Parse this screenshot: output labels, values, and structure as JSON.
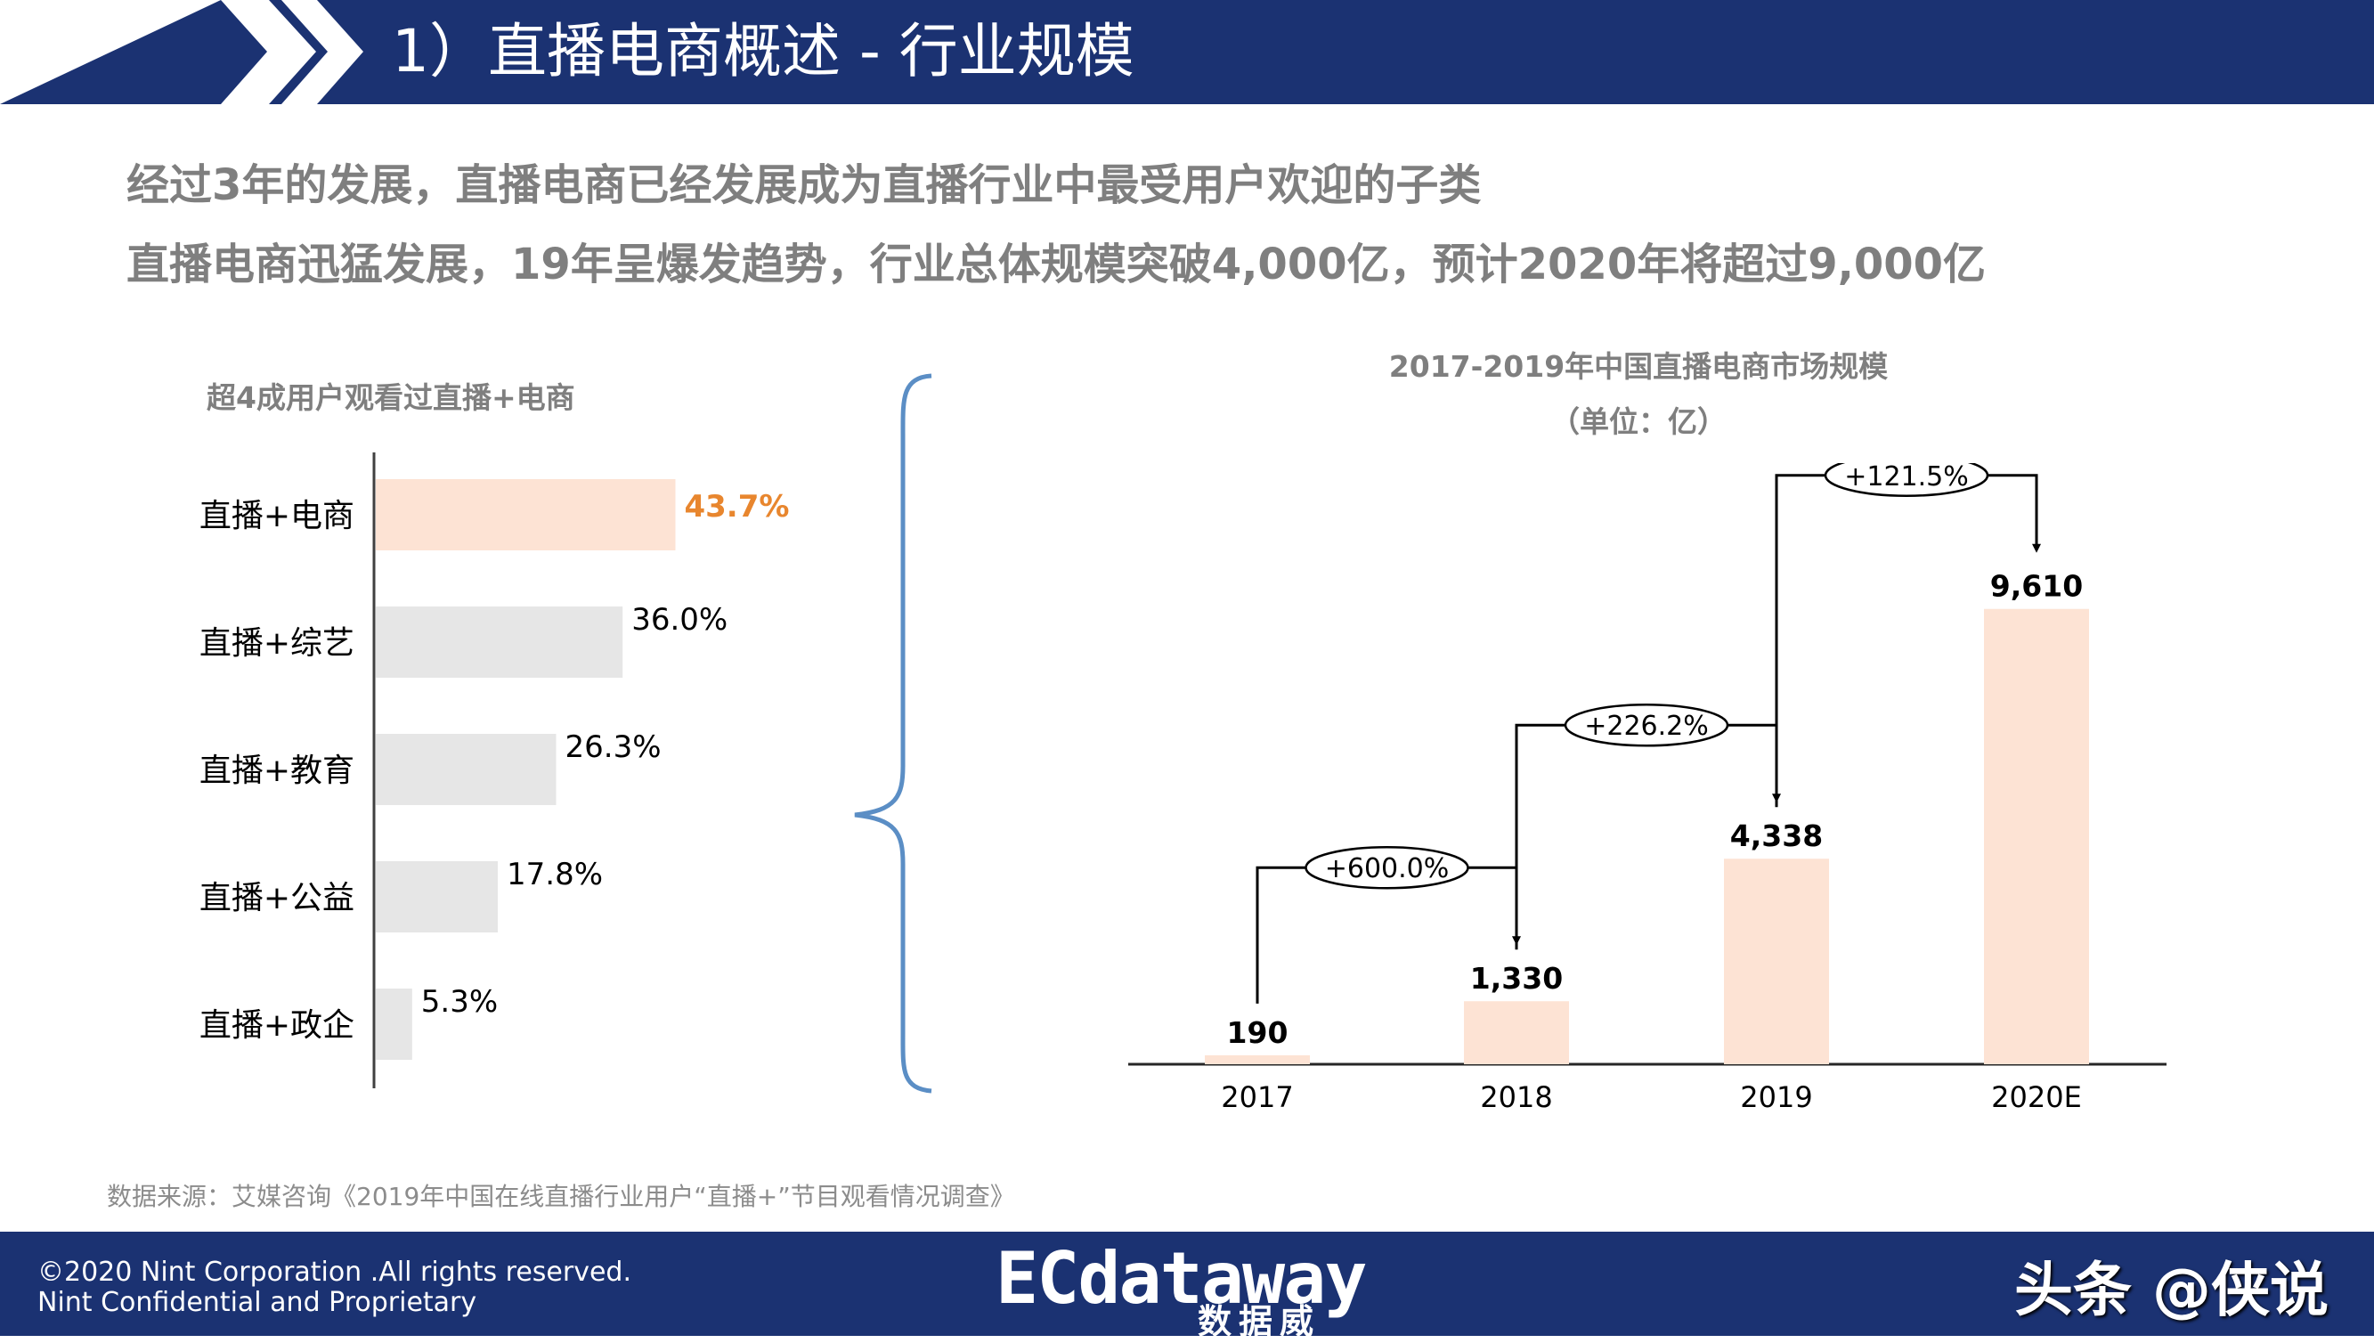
{
  "header": {
    "title": "1）直播电商概述 - 行业规模"
  },
  "headlines": [
    "经过3年的发展，直播电商已经发展成为直播行业中最受用户欢迎的子类",
    "直播电商迅猛发展，19年呈爆发趋势，行业总体规模突破4,000亿，预计2020年将超过9,000亿"
  ],
  "source": "数据来源：艾媒咨询《2019年中国在线直播行业用户“直播+”节目观看情况调查》",
  "footer": {
    "copyright": "©2020 Nint Corporation .All rights reserved.",
    "confidential": "Nint Confidential and Proprietary",
    "logo_text": "ECdataway",
    "logo_sub": "数据威",
    "watermark": "头条 @侠说"
  },
  "colors": {
    "brand_blue": "#1b3272",
    "highlight_bar": "#fde3d4",
    "gray_bar": "#e6e6e6",
    "highlight_label": "#e8862e",
    "brace": "#5b8ec5"
  },
  "chart_data": [
    {
      "type": "bar",
      "orientation": "horizontal",
      "title": "超4成用户观看过直播+电商",
      "categories": [
        "直播+电商",
        "直播+综艺",
        "直播+教育",
        "直播+公益",
        "直播+政企"
      ],
      "values": [
        43.7,
        36.0,
        26.3,
        17.8,
        5.3
      ],
      "value_labels": [
        "43.7%",
        "36.0%",
        "26.3%",
        "17.8%",
        "5.3%"
      ],
      "highlight_index": 0,
      "xlim": [
        0,
        60
      ],
      "grid": false
    },
    {
      "type": "bar",
      "title": "2017-2019年中国直播电商市场规模",
      "subtitle": "（单位：亿）",
      "categories": [
        "2017",
        "2018",
        "2019",
        "2020E"
      ],
      "values": [
        190,
        1330,
        4338,
        9610
      ],
      "value_labels": [
        "190",
        "1,330",
        "4,338",
        "9,610"
      ],
      "growth_labels": [
        "+600.0%",
        "+226.2%",
        "+121.5%"
      ],
      "ylim": [
        0,
        10000
      ],
      "grid": false
    }
  ]
}
